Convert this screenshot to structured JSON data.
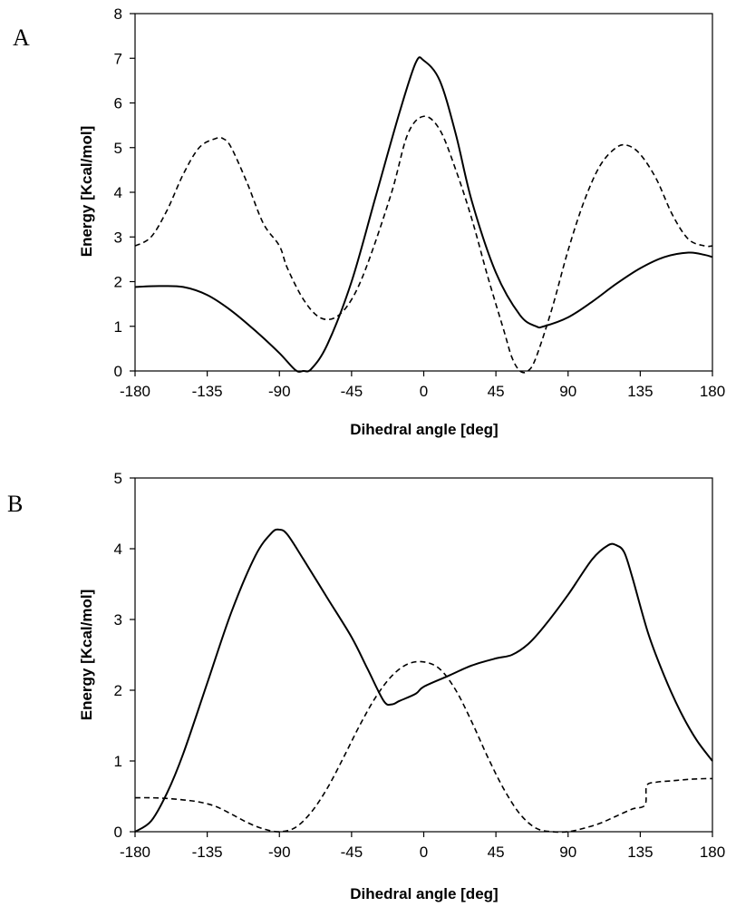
{
  "chart_data": [
    {
      "type": "line",
      "panel_label": "A",
      "title": "",
      "xlabel": "Dihedral angle [deg]",
      "ylabel": "Energy [Kcal/mol]",
      "xlim": [
        -180,
        180
      ],
      "ylim": [
        0,
        8
      ],
      "xticks": [
        -180,
        -135,
        -90,
        -45,
        0,
        45,
        90,
        135,
        180
      ],
      "yticks": [
        0,
        1,
        2,
        3,
        4,
        5,
        6,
        7,
        8
      ],
      "grid": false,
      "series": [
        {
          "name": "solid",
          "style": "solid",
          "x": [
            -180,
            -165,
            -150,
            -135,
            -120,
            -105,
            -90,
            -80,
            -75,
            -70,
            -60,
            -45,
            -30,
            -15,
            -5,
            0,
            10,
            20,
            30,
            45,
            60,
            70,
            75,
            90,
            105,
            120,
            135,
            150,
            165,
            175,
            180
          ],
          "y": [
            1.88,
            1.9,
            1.88,
            1.7,
            1.35,
            0.9,
            0.4,
            0.02,
            0.0,
            0.05,
            0.6,
            2.0,
            3.9,
            5.8,
            6.9,
            6.95,
            6.5,
            5.3,
            3.8,
            2.2,
            1.25,
            1.0,
            1.0,
            1.2,
            1.55,
            1.95,
            2.3,
            2.55,
            2.65,
            2.6,
            2.55
          ]
        },
        {
          "name": "dashed",
          "style": "dashed",
          "x": [
            -180,
            -170,
            -160,
            -150,
            -140,
            -130,
            -125,
            -120,
            -110,
            -100,
            -90,
            -85,
            -75,
            -65,
            -55,
            -45,
            -35,
            -20,
            -10,
            0,
            10,
            20,
            30,
            40,
            50,
            55,
            60,
            65,
            70,
            80,
            90,
            100,
            110,
            120,
            127,
            135,
            145,
            155,
            165,
            175,
            180
          ],
          "y": [
            2.8,
            3.0,
            3.6,
            4.4,
            5.0,
            5.2,
            5.2,
            5.0,
            4.2,
            3.3,
            2.8,
            2.3,
            1.6,
            1.2,
            1.2,
            1.6,
            2.4,
            4.0,
            5.3,
            5.7,
            5.4,
            4.5,
            3.4,
            2.1,
            0.9,
            0.3,
            0.0,
            0.0,
            0.3,
            1.4,
            2.7,
            3.8,
            4.6,
            5.0,
            5.05,
            4.85,
            4.3,
            3.5,
            2.95,
            2.8,
            2.8
          ]
        }
      ]
    },
    {
      "type": "line",
      "panel_label": "B",
      "title": "",
      "xlabel": "Dihedral angle [deg]",
      "ylabel": "Energy [Kcal/mol]",
      "xlim": [
        -180,
        180
      ],
      "ylim": [
        0,
        5
      ],
      "xticks": [
        -180,
        -135,
        -90,
        -45,
        0,
        45,
        90,
        135,
        180
      ],
      "yticks": [
        0,
        1,
        2,
        3,
        4,
        5
      ],
      "grid": false,
      "series": [
        {
          "name": "solid",
          "style": "solid",
          "x": [
            -180,
            -170,
            -160,
            -150,
            -135,
            -120,
            -105,
            -95,
            -90,
            -85,
            -75,
            -60,
            -45,
            -35,
            -25,
            -20,
            -15,
            -5,
            0,
            15,
            30,
            45,
            55,
            65,
            75,
            90,
            105,
            115,
            120,
            125,
            130,
            140,
            150,
            160,
            170,
            180
          ],
          "y": [
            0.0,
            0.15,
            0.55,
            1.1,
            2.1,
            3.1,
            3.9,
            4.22,
            4.27,
            4.2,
            3.85,
            3.3,
            2.75,
            2.3,
            1.85,
            1.8,
            1.85,
            1.95,
            2.05,
            2.2,
            2.35,
            2.45,
            2.5,
            2.65,
            2.9,
            3.35,
            3.85,
            4.05,
            4.05,
            3.95,
            3.6,
            2.8,
            2.2,
            1.7,
            1.3,
            1.0
          ]
        },
        {
          "name": "dashed",
          "style": "dashed",
          "x": [
            -180,
            -170,
            -160,
            -150,
            -140,
            -130,
            -120,
            -110,
            -100,
            -90,
            -80,
            -70,
            -60,
            -50,
            -40,
            -30,
            -20,
            -10,
            0,
            10,
            20,
            30,
            40,
            50,
            60,
            70,
            80,
            90,
            100,
            110,
            120,
            130,
            138,
            139,
            145,
            155,
            165,
            175,
            180
          ],
          "y": [
            0.48,
            0.48,
            0.47,
            0.45,
            0.42,
            0.36,
            0.25,
            0.13,
            0.04,
            0.0,
            0.06,
            0.28,
            0.62,
            1.05,
            1.5,
            1.9,
            2.2,
            2.37,
            2.4,
            2.3,
            2.0,
            1.55,
            1.05,
            0.6,
            0.25,
            0.05,
            0.0,
            0.0,
            0.05,
            0.12,
            0.22,
            0.32,
            0.38,
            0.65,
            0.7,
            0.72,
            0.74,
            0.75,
            0.75
          ]
        }
      ]
    }
  ]
}
